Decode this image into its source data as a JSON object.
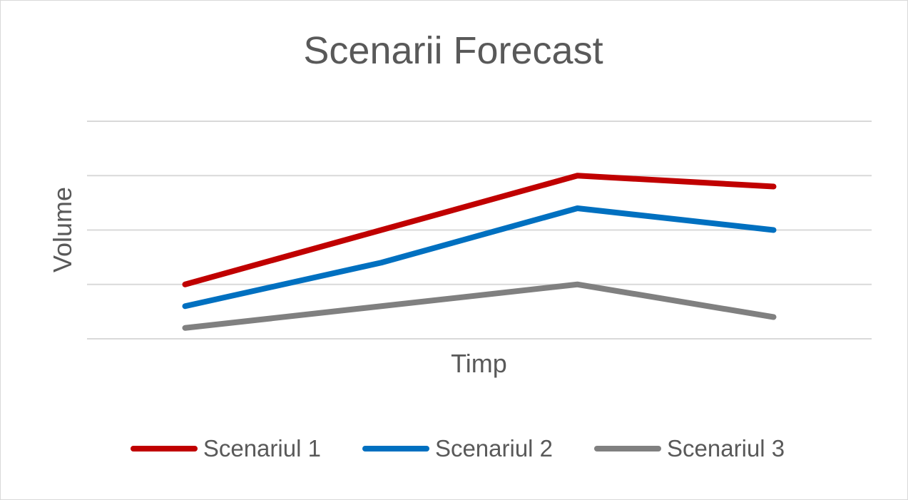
{
  "chart_data": {
    "type": "line",
    "title": "Scenarii Forecast",
    "xlabel": "Timp",
    "ylabel": "Volume",
    "categories": [
      "",
      "",
      "",
      ""
    ],
    "ylim": [
      0,
      4
    ],
    "grid": true,
    "legend_position": "bottom",
    "series": [
      {
        "name": "Scenariul 1",
        "color": "#c00000",
        "values": [
          1.0,
          2.0,
          3.0,
          2.8
        ]
      },
      {
        "name": "Scenariul 2",
        "color": "#0070c0",
        "values": [
          0.6,
          1.4,
          2.4,
          2.0
        ]
      },
      {
        "name": "Scenariul 3",
        "color": "#808080",
        "values": [
          0.2,
          0.6,
          1.0,
          0.4
        ]
      }
    ]
  }
}
